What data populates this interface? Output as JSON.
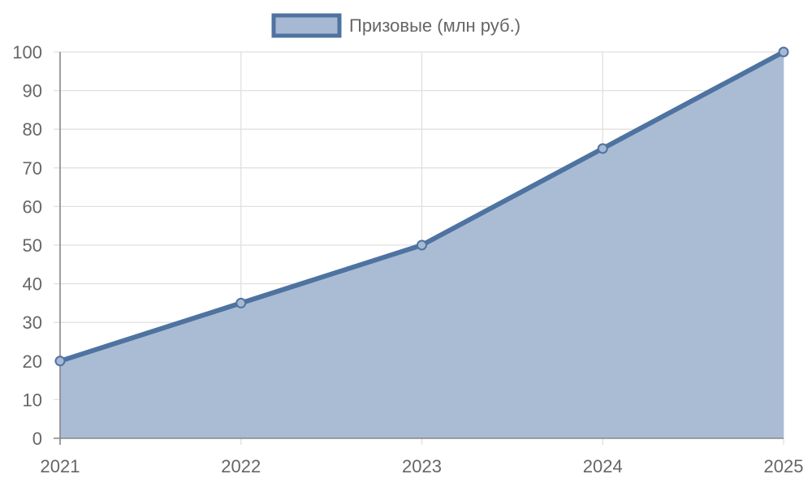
{
  "chart_data": {
    "type": "area",
    "categories": [
      "2021",
      "2022",
      "2023",
      "2024",
      "2025"
    ],
    "series": [
      {
        "name": "Призовые (млн руб.)",
        "values": [
          20,
          35,
          50,
          75,
          100
        ]
      }
    ],
    "y_ticks": [
      "0",
      "10",
      "20",
      "30",
      "40",
      "50",
      "60",
      "70",
      "80",
      "90",
      "100"
    ],
    "ylim": [
      0,
      100
    ],
    "grid": true,
    "legend_position": "top-center",
    "colors": {
      "line": "#4e73a1",
      "fill": "#a7b9d2",
      "grid": "#e0e0e0",
      "axis": "#888888",
      "text": "#666666"
    }
  }
}
